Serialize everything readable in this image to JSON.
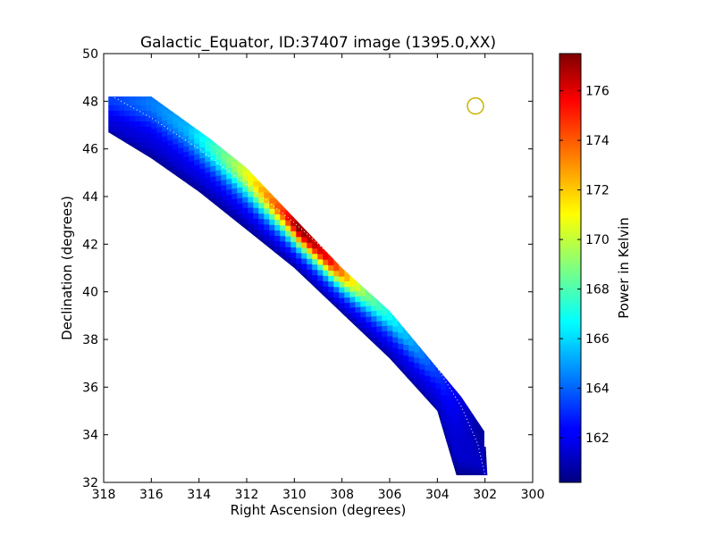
{
  "chart_data": {
    "type": "heatmap",
    "title": "Galactic_Equator, ID:37407 image (1395.0,XX)",
    "xlabel": "Right Ascension (degrees)",
    "ylabel": "Declination (degrees)",
    "xlim": [
      318,
      300
    ],
    "ylim": [
      32,
      50
    ],
    "xticks": [
      318,
      316,
      314,
      312,
      310,
      308,
      306,
      304,
      302,
      300
    ],
    "yticks": [
      32,
      34,
      36,
      38,
      40,
      42,
      44,
      46,
      48,
      50
    ],
    "colorbar": {
      "label": "Power in Kelvin",
      "range": [
        160.2,
        177.5
      ],
      "ticks": [
        162,
        164,
        166,
        168,
        170,
        172,
        174,
        176
      ],
      "colormap": "jet"
    },
    "strip": {
      "upper_edge": [
        [
          317.8,
          48.2
        ],
        [
          316.0,
          48.2
        ],
        [
          313.5,
          46.4
        ],
        [
          312.0,
          45.2
        ],
        [
          310.0,
          43.1
        ],
        [
          308.0,
          41.0
        ],
        [
          306.0,
          39.2
        ],
        [
          304.5,
          37.4
        ],
        [
          303.0,
          35.6
        ],
        [
          302.0,
          34.1
        ],
        [
          301.9,
          32.3
        ]
      ],
      "lower_edge": [
        [
          317.8,
          46.7
        ],
        [
          316.0,
          45.6
        ],
        [
          314.0,
          44.2
        ],
        [
          312.0,
          42.6
        ],
        [
          310.0,
          41.0
        ],
        [
          308.0,
          39.1
        ],
        [
          306.0,
          37.2
        ],
        [
          304.0,
          35.0
        ],
        [
          303.2,
          32.3
        ]
      ],
      "peak_position": [
        309.8,
        42.5
      ],
      "peak_value": 177.5,
      "profile": [
        {
          "ra": 317.5,
          "max_power": 163.5
        },
        {
          "ra": 314.5,
          "max_power": 165.5
        },
        {
          "ra": 312.5,
          "max_power": 169.5
        },
        {
          "ra": 310.5,
          "max_power": 174.5
        },
        {
          "ra": 309.8,
          "max_power": 177.5
        },
        {
          "ra": 308.5,
          "max_power": 175.5
        },
        {
          "ra": 307.0,
          "max_power": 169.0
        },
        {
          "ra": 305.5,
          "max_power": 166.0
        },
        {
          "ra": 303.5,
          "max_power": 162.5
        },
        {
          "ra": 302.0,
          "max_power": 160.5
        }
      ],
      "edge_power": 161.5
    },
    "equator_line": [
      [
        317.8,
        48.3
      ],
      [
        316,
        47.3
      ],
      [
        314,
        46.0
      ],
      [
        312,
        44.5
      ],
      [
        310,
        42.9
      ],
      [
        308,
        41.1
      ],
      [
        306,
        39.2
      ],
      [
        305,
        38.1
      ],
      [
        304,
        36.8
      ],
      [
        303,
        35.2
      ],
      [
        302.3,
        33.6
      ],
      [
        302.0,
        32.3
      ]
    ],
    "source_marker": {
      "ra": 302.4,
      "dec": 47.8,
      "color": "#c8b400"
    }
  }
}
